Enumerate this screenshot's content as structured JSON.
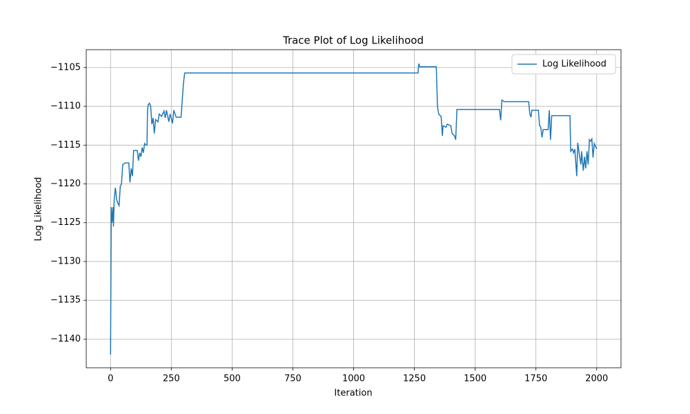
{
  "chart_data": {
    "type": "line",
    "title": "Trace Plot of Log Likelihood",
    "x_label": "Iteration",
    "y_label": "Log Likelihood",
    "xlim": [
      -100,
      2100
    ],
    "ylim": [
      -1143.7,
      -1102.7
    ],
    "xticks": [
      0,
      250,
      500,
      750,
      1000,
      1250,
      1500,
      1750,
      2000
    ],
    "yticks": [
      {
        "value": -1140,
        "label": "−1140"
      },
      {
        "value": -1135,
        "label": "−1135"
      },
      {
        "value": -1130,
        "label": "−1130"
      },
      {
        "value": -1125,
        "label": "−1125"
      },
      {
        "value": -1120,
        "label": "−1120"
      },
      {
        "value": -1115,
        "label": "−1115"
      },
      {
        "value": -1110,
        "label": "−1110"
      },
      {
        "value": -1105,
        "label": "−1105"
      }
    ],
    "grid": true,
    "legend": "upper right",
    "x": [
      0,
      3,
      6,
      10,
      12,
      15,
      18,
      20,
      25,
      30,
      35,
      40,
      45,
      50,
      60,
      75,
      80,
      85,
      90,
      95,
      110,
      115,
      120,
      125,
      130,
      135,
      140,
      145,
      150,
      152,
      155,
      160,
      165,
      170,
      175,
      180,
      185,
      195,
      200,
      210,
      220,
      225,
      230,
      240,
      245,
      250,
      255,
      260,
      270,
      290,
      300,
      305,
      1265,
      1268,
      1272,
      1340,
      1345,
      1350,
      1360,
      1365,
      1368,
      1380,
      1385,
      1400,
      1405,
      1415,
      1420,
      1425,
      1600,
      1605,
      1610,
      1620,
      1720,
      1725,
      1730,
      1733,
      1760,
      1765,
      1770,
      1775,
      1780,
      1800,
      1805,
      1810,
      1815,
      1890,
      1893,
      1900,
      1905,
      1910,
      1918,
      1922,
      1930,
      1935,
      1938,
      1945,
      1950,
      1955,
      1960,
      1965,
      1970,
      1975,
      1980,
      1985,
      1990,
      2000
    ],
    "series": [
      {
        "name": "Log Likelihood",
        "color": "#1f77b4",
        "values": [
          -1142,
          -1123,
          -1125,
          -1123,
          -1125.5,
          -1122,
          -1121,
          -1120.5,
          -1122,
          -1122.5,
          -1122.8,
          -1120.3,
          -1120,
          -1117.5,
          -1117.3,
          -1117.3,
          -1119.8,
          -1118,
          -1119,
          -1115.7,
          -1115.7,
          -1117,
          -1116,
          -1116.5,
          -1115.3,
          -1116,
          -1114.8,
          -1115,
          -1115,
          -1110.5,
          -1109.8,
          -1109.6,
          -1110,
          -1112.3,
          -1111.5,
          -1113.5,
          -1111.7,
          -1112,
          -1111,
          -1111.3,
          -1110.6,
          -1111.5,
          -1110.5,
          -1112,
          -1111,
          -1111.5,
          -1112.2,
          -1110.5,
          -1111.4,
          -1111.4,
          -1107,
          -1105.7,
          -1105.7,
          -1104.5,
          -1104.9,
          -1104.9,
          -1110,
          -1111,
          -1111.3,
          -1113.8,
          -1112.5,
          -1112.7,
          -1112.3,
          -1112.5,
          -1113.5,
          -1113.8,
          -1114.3,
          -1110.4,
          -1110.4,
          -1111.8,
          -1109.2,
          -1109.4,
          -1109.4,
          -1111,
          -1111.4,
          -1110.5,
          -1110.5,
          -1112.5,
          -1112.7,
          -1114,
          -1113,
          -1113,
          -1110.5,
          -1114.3,
          -1111.2,
          -1111.2,
          -1115.8,
          -1115.5,
          -1116,
          -1115.5,
          -1119,
          -1114.7,
          -1116.5,
          -1117.5,
          -1115.8,
          -1118.3,
          -1116.5,
          -1118,
          -1115.8,
          -1117.5,
          -1114.3,
          -1114.5,
          -1114.2,
          -1116.6,
          -1114.8,
          -1115.5
        ]
      }
    ]
  }
}
